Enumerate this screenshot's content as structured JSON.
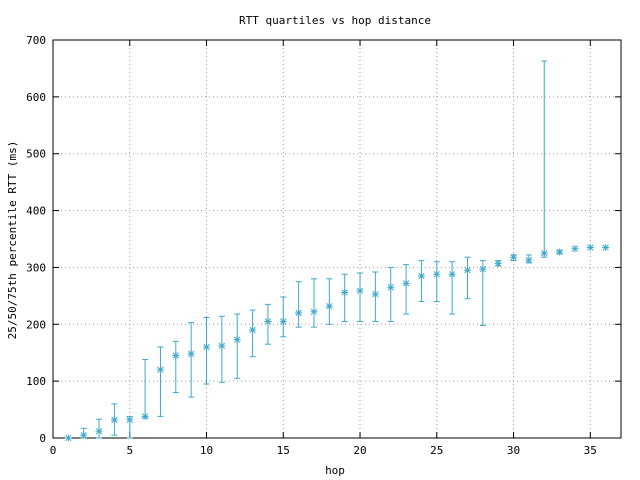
{
  "chart_data": {
    "type": "scatter",
    "title": "RTT quartiles vs hop distance",
    "xlabel": "hop",
    "ylabel": "25/50/75th percentile RTT (ms)",
    "xlim": [
      0,
      37
    ],
    "ylim": [
      0,
      700
    ],
    "x_ticks": [
      0,
      5,
      10,
      15,
      20,
      25,
      30,
      35
    ],
    "y_ticks": [
      0,
      100,
      200,
      300,
      400,
      500,
      600,
      700
    ],
    "grid": true,
    "series_color": "#3fa8cc",
    "points": [
      {
        "x": 1,
        "y": 0,
        "low": 0,
        "high": 0
      },
      {
        "x": 2,
        "y": 5,
        "low": 0,
        "high": 17
      },
      {
        "x": 3,
        "y": 12,
        "low": 0,
        "high": 33
      },
      {
        "x": 4,
        "y": 32,
        "low": 5,
        "high": 60
      },
      {
        "x": 5,
        "y": 32,
        "low": 0,
        "high": 38
      },
      {
        "x": 6,
        "y": 38,
        "low": 35,
        "high": 138
      },
      {
        "x": 7,
        "y": 120,
        "low": 38,
        "high": 160
      },
      {
        "x": 8,
        "y": 145,
        "low": 80,
        "high": 170
      },
      {
        "x": 9,
        "y": 148,
        "low": 72,
        "high": 203
      },
      {
        "x": 10,
        "y": 160,
        "low": 95,
        "high": 212
      },
      {
        "x": 11,
        "y": 162,
        "low": 98,
        "high": 214
      },
      {
        "x": 12,
        "y": 173,
        "low": 105,
        "high": 218
      },
      {
        "x": 13,
        "y": 190,
        "low": 143,
        "high": 225
      },
      {
        "x": 14,
        "y": 205,
        "low": 165,
        "high": 235
      },
      {
        "x": 15,
        "y": 205,
        "low": 178,
        "high": 248
      },
      {
        "x": 16,
        "y": 220,
        "low": 195,
        "high": 275
      },
      {
        "x": 17,
        "y": 222,
        "low": 195,
        "high": 280
      },
      {
        "x": 18,
        "y": 232,
        "low": 200,
        "high": 280
      },
      {
        "x": 19,
        "y": 256,
        "low": 205,
        "high": 288
      },
      {
        "x": 20,
        "y": 259,
        "low": 205,
        "high": 290
      },
      {
        "x": 21,
        "y": 253,
        "low": 205,
        "high": 292
      },
      {
        "x": 22,
        "y": 265,
        "low": 205,
        "high": 300
      },
      {
        "x": 23,
        "y": 272,
        "low": 218,
        "high": 305
      },
      {
        "x": 24,
        "y": 285,
        "low": 240,
        "high": 312
      },
      {
        "x": 25,
        "y": 288,
        "low": 240,
        "high": 310
      },
      {
        "x": 26,
        "y": 288,
        "low": 218,
        "high": 310
      },
      {
        "x": 27,
        "y": 295,
        "low": 245,
        "high": 318
      },
      {
        "x": 28,
        "y": 297,
        "low": 198,
        "high": 312
      },
      {
        "x": 29,
        "y": 307,
        "low": 303,
        "high": 312
      },
      {
        "x": 30,
        "y": 318,
        "low": 312,
        "high": 322
      },
      {
        "x": 31,
        "y": 313,
        "low": 308,
        "high": 322
      },
      {
        "x": 32,
        "y": 325,
        "low": 318,
        "high": 663
      },
      {
        "x": 33,
        "y": 327,
        "low": 324,
        "high": 330
      },
      {
        "x": 34,
        "y": 333,
        "low": 333,
        "high": 333
      },
      {
        "x": 35,
        "y": 335,
        "low": 335,
        "high": 335
      },
      {
        "x": 36,
        "y": 335,
        "low": 335,
        "high": 335
      }
    ]
  }
}
